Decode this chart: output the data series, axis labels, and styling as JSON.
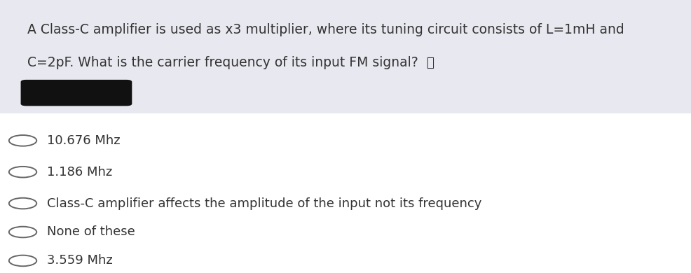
{
  "question_text_line1": "A Class-C amplifier is used as x3 multiplier, where its tuning circuit consists of L=1mH and",
  "question_text_line2": "C=2pF. What is the carrier frequency of its input FM signal?",
  "question_bg_color": "#e8e8f0",
  "answer_bg_color": "#ffffff",
  "options": [
    "10.676 Mhz",
    "1.186 Mhz",
    "Class-C amplifier affects the amplitude of the input not its frequency",
    "None of these",
    "3.559 Mhz"
  ],
  "text_color": "#333333",
  "circle_edge_color": "#666666",
  "font_size": 13,
  "question_font_size": 13.5
}
